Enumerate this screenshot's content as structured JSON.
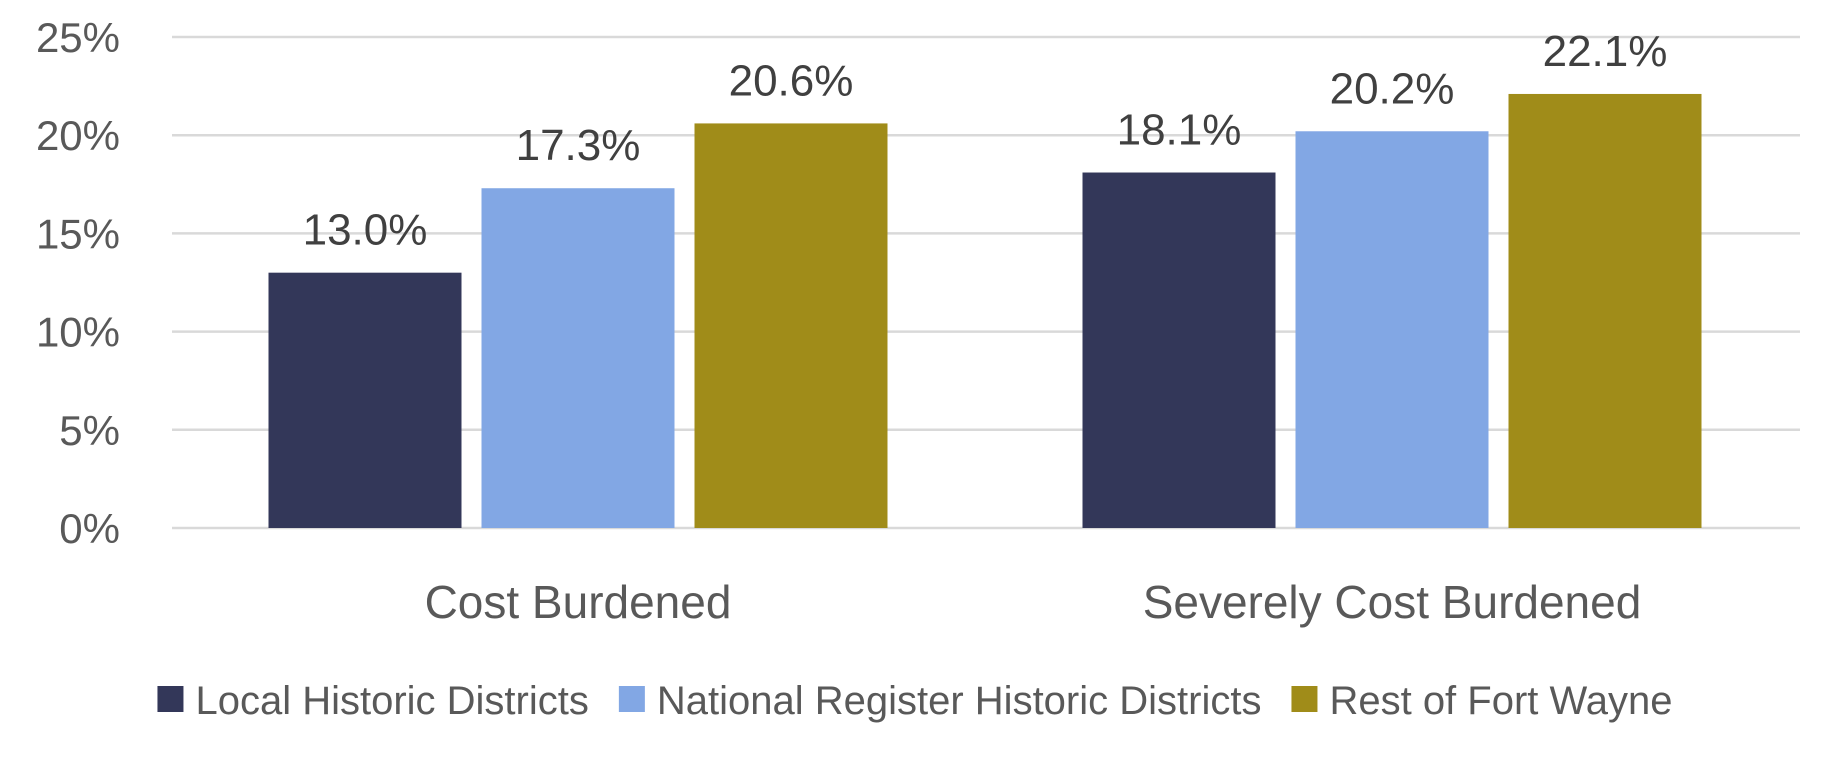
{
  "chart_data": {
    "type": "bar",
    "categories": [
      "Cost Burdened",
      "Severely Cost Burdened"
    ],
    "series": [
      {
        "name": "Local Historic Districts",
        "values": [
          13.0,
          18.1
        ],
        "color": "#333759"
      },
      {
        "name": "National Register Historic Districts",
        "values": [
          17.3,
          20.2
        ],
        "color": "#82a7e4"
      },
      {
        "name": "Rest of Fort Wayne",
        "values": [
          20.6,
          22.1
        ],
        "color": "#a08c19"
      }
    ],
    "data_labels": [
      [
        "13.0%",
        "18.1%"
      ],
      [
        "17.3%",
        "20.2%"
      ],
      [
        "20.6%",
        "22.1%"
      ]
    ],
    "y_ticks": [
      "0%",
      "5%",
      "10%",
      "15%",
      "20%",
      "25%"
    ],
    "ylim": [
      0,
      25
    ],
    "grid": true,
    "legend": "bottom",
    "title": "",
    "xlabel": "",
    "ylabel": ""
  }
}
